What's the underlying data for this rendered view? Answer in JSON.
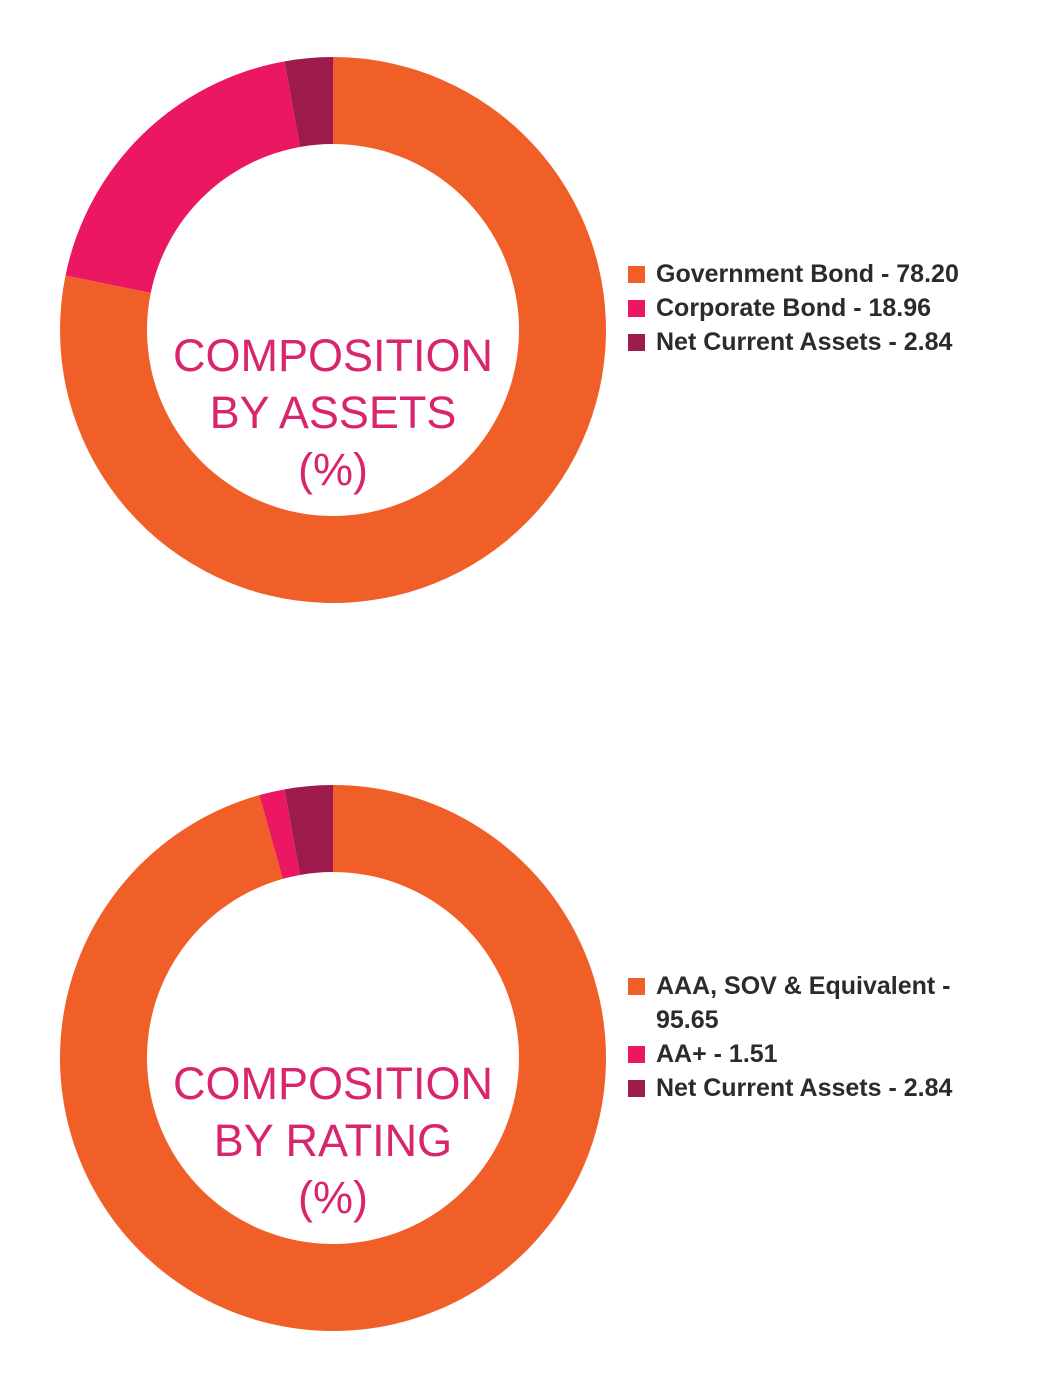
{
  "chart_data": [
    {
      "type": "pie",
      "title": [
        "COMPOSITION",
        "BY ASSETS",
        "(%)"
      ],
      "categories": [
        "Government Bond",
        "Corporate Bond",
        "Net Current Assets"
      ],
      "values": [
        78.2,
        18.96,
        2.84
      ],
      "legend_labels": [
        "Government Bond - 78.20",
        "Corporate Bond - 18.96",
        "Net Current Assets - 2.84"
      ],
      "colors": [
        "#f15f29",
        "#ec1762",
        "#9e1b4e"
      ],
      "legend": "right"
    },
    {
      "type": "pie",
      "title": [
        "COMPOSITION",
        "BY RATING",
        "(%)"
      ],
      "categories": [
        "AAA, SOV & Equivalent",
        "AA+",
        "Net Current Assets"
      ],
      "values": [
        95.65,
        1.51,
        2.84
      ],
      "legend_labels": [
        "AAA, SOV & Equivalent -",
        "AA+ - 1.51",
        "Net Current Assets - 2.84"
      ],
      "legend_first_continuation": "95.65",
      "colors": [
        "#f15f29",
        "#ec1762",
        "#9e1b4e"
      ],
      "legend": "right"
    }
  ]
}
